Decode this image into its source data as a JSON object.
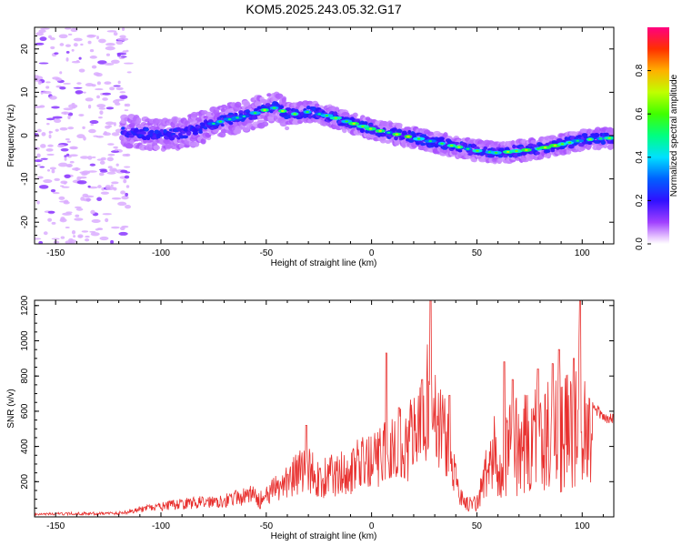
{
  "title": "KOM5.2025.243.05.32.G17",
  "colors": {
    "snr_line": "#e8302e",
    "frame": "#000000",
    "background": "#ffffff"
  },
  "chart_data": [
    {
      "type": "heatmap",
      "name": "spectrogram",
      "xlabel": "Height of straight line (km)",
      "ylabel": "Frequency (Hz)",
      "xlim": [
        -160,
        115
      ],
      "ylim": [
        -25,
        25
      ],
      "xticks": [
        -150,
        -100,
        -50,
        0,
        50,
        100
      ],
      "yticks": [
        -20,
        -10,
        0,
        10,
        20
      ],
      "colorbar": {
        "label": "Normalized spectral amplitude",
        "range": [
          0,
          1
        ],
        "ticks": [
          "0.0",
          "0.2",
          "0.4",
          "0.6",
          "0.8"
        ]
      },
      "ridge": {
        "description_points": [
          [
            -115,
            1
          ],
          [
            -100,
            0
          ],
          [
            -90,
            0.5
          ],
          [
            -80,
            2
          ],
          [
            -70,
            3.5
          ],
          [
            -60,
            4.5
          ],
          [
            -50,
            6
          ],
          [
            -45,
            6.5
          ],
          [
            -40,
            5
          ],
          [
            -35,
            5
          ],
          [
            -30,
            5.5
          ],
          [
            -20,
            4.5
          ],
          [
            -10,
            3
          ],
          [
            0,
            1.5
          ],
          [
            10,
            0.5
          ],
          [
            20,
            -0.5
          ],
          [
            30,
            -1.5
          ],
          [
            40,
            -2.5
          ],
          [
            50,
            -3.5
          ],
          [
            60,
            -4
          ],
          [
            70,
            -3.5
          ],
          [
            80,
            -3
          ],
          [
            90,
            -2
          ],
          [
            100,
            -1
          ],
          [
            115,
            -0.5
          ]
        ]
      }
    },
    {
      "type": "line",
      "name": "snr",
      "xlabel": "Height of straight line (km)",
      "ylabel": "SNR (v/v)",
      "xlim": [
        -160,
        115
      ],
      "ylim": [
        0,
        1230
      ],
      "xticks": [
        -150,
        -100,
        -50,
        0,
        50,
        100
      ],
      "yticks": [
        200,
        400,
        600,
        800,
        1000,
        1200
      ],
      "envelope": [
        [
          -160,
          15
        ],
        [
          -120,
          20
        ],
        [
          -110,
          40
        ],
        [
          -100,
          55
        ],
        [
          -90,
          70
        ],
        [
          -80,
          80
        ],
        [
          -70,
          90
        ],
        [
          -60,
          110
        ],
        [
          -55,
          130
        ],
        [
          -50,
          170
        ],
        [
          -45,
          250
        ],
        [
          -40,
          320
        ],
        [
          -35,
          380
        ],
        [
          -30,
          420
        ],
        [
          -25,
          320
        ],
        [
          -20,
          350
        ],
        [
          -15,
          380
        ],
        [
          -10,
          420
        ],
        [
          -5,
          450
        ],
        [
          0,
          480
        ],
        [
          5,
          520
        ],
        [
          10,
          600
        ],
        [
          15,
          650
        ],
        [
          20,
          700
        ],
        [
          25,
          800
        ],
        [
          28,
          1230
        ],
        [
          30,
          900
        ],
        [
          35,
          700
        ],
        [
          40,
          300
        ],
        [
          45,
          120
        ],
        [
          50,
          120
        ],
        [
          55,
          450
        ],
        [
          60,
          650
        ],
        [
          65,
          700
        ],
        [
          70,
          720
        ],
        [
          75,
          760
        ],
        [
          80,
          780
        ],
        [
          85,
          800
        ],
        [
          90,
          900
        ],
        [
          95,
          800
        ],
        [
          99,
          1230
        ],
        [
          102,
          800
        ],
        [
          105,
          650
        ],
        [
          110,
          580
        ],
        [
          115,
          560
        ]
      ],
      "spikes": [
        [
          -31,
          520
        ],
        [
          7,
          930
        ],
        [
          13,
          620
        ],
        [
          24,
          780
        ],
        [
          28,
          1230
        ],
        [
          37,
          690
        ],
        [
          63,
          880
        ],
        [
          67,
          780
        ],
        [
          79,
          840
        ],
        [
          86,
          870
        ],
        [
          89,
          950
        ],
        [
          96,
          900
        ],
        [
          99,
          1230
        ]
      ]
    }
  ]
}
